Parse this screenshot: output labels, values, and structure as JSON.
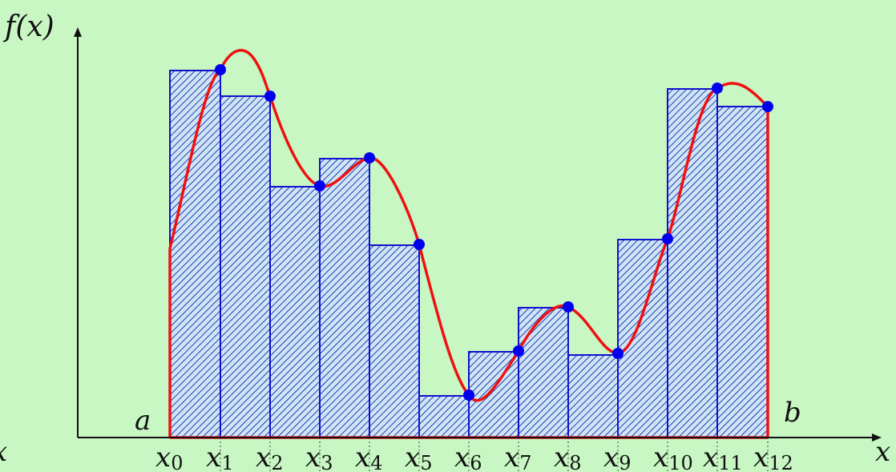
{
  "labels": {
    "y_axis": "f(x)",
    "x_axis_right": "x",
    "x_axis_left": "x",
    "a": "a",
    "b": "b",
    "x_ticks": [
      {
        "base": "x",
        "sub": "0"
      },
      {
        "base": "x",
        "sub": "1"
      },
      {
        "base": "x",
        "sub": "2"
      },
      {
        "base": "x",
        "sub": "3"
      },
      {
        "base": "x",
        "sub": "4"
      },
      {
        "base": "x",
        "sub": "5"
      },
      {
        "base": "x",
        "sub": "6"
      },
      {
        "base": "x",
        "sub": "7"
      },
      {
        "base": "x",
        "sub": "8"
      },
      {
        "base": "x",
        "sub": "9"
      },
      {
        "base": "x",
        "sub": "10"
      },
      {
        "base": "x",
        "sub": "11"
      },
      {
        "base": "x",
        "sub": "12"
      }
    ]
  },
  "colors": {
    "background": "#c8f7c4",
    "curve": "#ee1111",
    "bars": "#1111cc",
    "points": "#0000ee",
    "axes": "#111111"
  }
}
